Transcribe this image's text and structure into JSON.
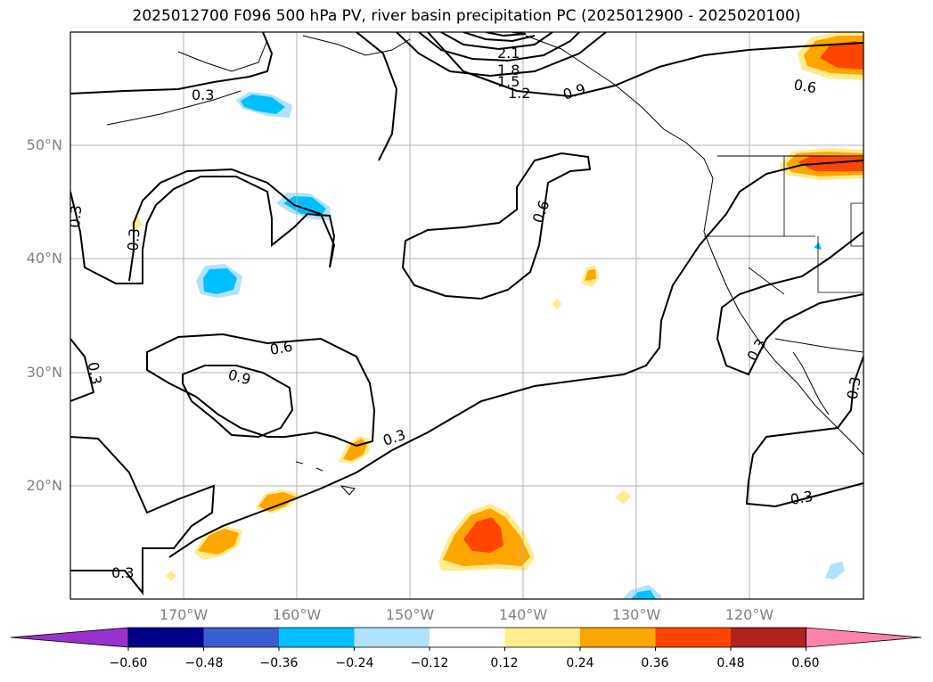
{
  "title": "2025012700 F096 500 hPa PV, river basin precipitation PC (2025012900 - 2025020100)",
  "map": {
    "projection": "PlateCarree",
    "lon_range": [
      -180,
      -110
    ],
    "lat_range": [
      10,
      60
    ],
    "grid": true,
    "lat_labels": [
      "50°N",
      "40°N",
      "30°N",
      "20°N"
    ],
    "lon_labels": [
      "170°W",
      "160°W",
      "150°W",
      "140°W",
      "130°W",
      "120°W"
    ]
  },
  "pv_contour_labels": [
    "2.1",
    "1.8",
    "1.5",
    "1.2",
    "0.9",
    "0.6",
    "0.3",
    "0.3",
    "0.3",
    "0.3",
    "0.6",
    "0.9",
    "0.3",
    "0.3",
    "0.3",
    "0.3",
    "0.3"
  ],
  "colorbar": {
    "ticks": [
      "−0.60",
      "−0.48",
      "−0.36",
      "−0.24",
      "−0.12",
      "0.12",
      "0.24",
      "0.36",
      "0.48",
      "0.60"
    ],
    "colors": [
      "#9932cc",
      "#00008b",
      "#3a5fcd",
      "#00bfff",
      "#b0e2ff",
      "#ffffff",
      "#ffec8b",
      "#ffa500",
      "#ff4500",
      "#b22222",
      "#ff82ab"
    ],
    "extend": "both"
  }
}
